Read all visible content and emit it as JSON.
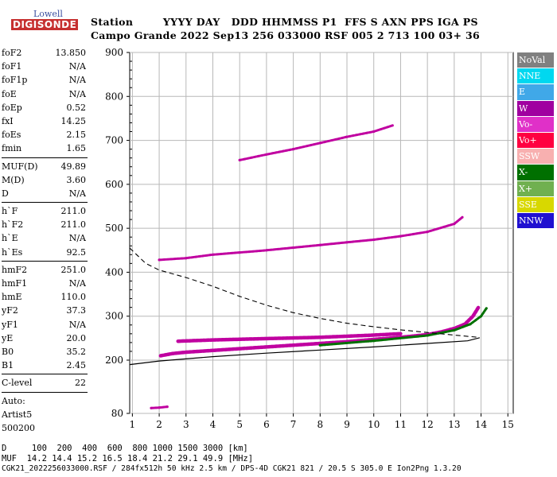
{
  "logo": {
    "line1": "Lowell",
    "line2": "DIGISONDE"
  },
  "header": {
    "line1": "Station        YYYY DAY   DDD HHMMSS P1  FFS S AXN PPS IGA PS",
    "line2": "Campo Grande 2022 Sep13 256 033000 RSF 005 2 713 100 03+ 36"
  },
  "params": {
    "group1": [
      {
        "name": "foF2",
        "value": "13.850"
      },
      {
        "name": "foF1",
        "value": "N/A"
      },
      {
        "name": "foF1p",
        "value": "N/A"
      },
      {
        "name": "foE",
        "value": "N/A"
      },
      {
        "name": "foEp",
        "value": "0.52"
      },
      {
        "name": "fxI",
        "value": "14.25"
      },
      {
        "name": "foEs",
        "value": "2.15"
      },
      {
        "name": "fmin",
        "value": "1.65"
      }
    ],
    "group2": [
      {
        "name": "MUF(D)",
        "value": "49.89"
      },
      {
        "name": "M(D)",
        "value": "3.60"
      },
      {
        "name": "D",
        "value": "N/A"
      }
    ],
    "group3": [
      {
        "name": "h`F",
        "value": "211.0"
      },
      {
        "name": "h`F2",
        "value": "211.0"
      },
      {
        "name": "h`E",
        "value": "N/A"
      },
      {
        "name": "h`Es",
        "value": "92.5"
      }
    ],
    "group4": [
      {
        "name": "hmF2",
        "value": "251.0"
      },
      {
        "name": "hmF1",
        "value": "N/A"
      },
      {
        "name": "hmE",
        "value": "110.0"
      },
      {
        "name": "yF2",
        "value": "37.3"
      },
      {
        "name": "yF1",
        "value": "N/A"
      },
      {
        "name": "yE",
        "value": "20.0"
      },
      {
        "name": "B0",
        "value": "35.2"
      },
      {
        "name": "B1",
        "value": "2.45"
      }
    ],
    "group5": [
      {
        "name": "C-level",
        "value": "22"
      }
    ],
    "notes": [
      "Auto:",
      "Artist5",
      "500200"
    ]
  },
  "legend": [
    {
      "label": "NoVal",
      "color": "#808080"
    },
    {
      "label": "NNE",
      "color": "#00d8f0"
    },
    {
      "label": "E",
      "color": "#40a8e8"
    },
    {
      "label": "W",
      "color": "#a000a0"
    },
    {
      "label": "Vo-",
      "color": "#e030c8"
    },
    {
      "label": "Vo+",
      "color": "#ff0040"
    },
    {
      "label": "SSW",
      "color": "#f8b0b0"
    },
    {
      "label": "X-",
      "color": "#007000"
    },
    {
      "label": "X+",
      "color": "#70b050"
    },
    {
      "label": "SSE",
      "color": "#d8d800"
    },
    {
      "label": "NNW",
      "color": "#2010d0"
    }
  ],
  "footer": {
    "line1": "D     100  200  400  600  800 1000 1500 3000 [km]",
    "line2": "MUF  14.2 14.4 15.2 16.5 18.4 21.2 29.1 49.9 [MHz]",
    "line3": "CGK21_2022256033000.RSF / 284fx512h 50 kHz 2.5 km / DPS-4D CGK21 821 / 20.5 S 305.0 E Ion2Png 1.3.20"
  },
  "chart_data": {
    "type": "scatter",
    "x_ticks": [
      1,
      2,
      3,
      4,
      5,
      6,
      7,
      8,
      9,
      10,
      11,
      12,
      13,
      14,
      15
    ],
    "y_ticks": [
      80,
      200,
      300,
      400,
      500,
      600,
      700,
      800,
      900
    ],
    "xlim": [
      0.9,
      15.2
    ],
    "ylim": [
      80,
      900
    ],
    "grid": true,
    "traces": [
      {
        "name": "F2 lower trace",
        "color": "#c000a0",
        "points": [
          [
            2.05,
            210
          ],
          [
            2.5,
            215
          ],
          [
            3,
            218
          ],
          [
            4,
            222
          ],
          [
            5,
            226
          ],
          [
            6,
            230
          ],
          [
            7,
            234
          ],
          [
            8,
            238
          ],
          [
            9,
            242
          ],
          [
            10,
            247
          ],
          [
            11,
            252
          ],
          [
            12,
            258
          ],
          [
            12.5,
            264
          ],
          [
            13,
            272
          ],
          [
            13.4,
            282
          ],
          [
            13.7,
            300
          ],
          [
            13.9,
            320
          ]
        ]
      },
      {
        "name": "F2 upper trace",
        "color": "#c000a0",
        "points": [
          [
            2.7,
            243
          ],
          [
            4,
            246
          ],
          [
            6,
            249
          ],
          [
            8,
            252
          ],
          [
            10,
            257
          ],
          [
            11,
            260
          ]
        ]
      },
      {
        "name": "multi-hop mid trace",
        "color": "#c000a0",
        "points": [
          [
            2.0,
            428
          ],
          [
            3,
            432
          ],
          [
            4,
            440
          ],
          [
            5,
            445
          ],
          [
            6,
            450
          ],
          [
            7,
            456
          ],
          [
            8,
            462
          ],
          [
            9,
            468
          ],
          [
            10,
            474
          ],
          [
            11,
            482
          ],
          [
            12,
            492
          ],
          [
            13,
            510
          ],
          [
            13.3,
            525
          ]
        ]
      },
      {
        "name": "multi-hop upper trace",
        "color": "#c000a0",
        "points": [
          [
            5,
            655
          ],
          [
            6,
            668
          ],
          [
            7,
            680
          ],
          [
            8,
            694
          ],
          [
            9,
            708
          ],
          [
            10,
            720
          ],
          [
            10.7,
            734
          ]
        ]
      },
      {
        "name": "F2 X trace",
        "color": "#007000",
        "points": [
          [
            8,
            234
          ],
          [
            10,
            244
          ],
          [
            12,
            256
          ],
          [
            13,
            268
          ],
          [
            13.6,
            282
          ],
          [
            14,
            300
          ],
          [
            14.2,
            318
          ]
        ]
      },
      {
        "name": "Es / low echo",
        "color": "#c000a0",
        "points": [
          [
            1.7,
            92
          ],
          [
            2.0,
            93
          ],
          [
            2.3,
            95
          ]
        ]
      }
    ],
    "profile_solid": [
      [
        0.9,
        190
      ],
      [
        2,
        198
      ],
      [
        4,
        208
      ],
      [
        6,
        216
      ],
      [
        8,
        223
      ],
      [
        10,
        230
      ],
      [
        12,
        238
      ],
      [
        13.5,
        244
      ],
      [
        13.95,
        251
      ]
    ],
    "profile_dashed": [
      [
        0.9,
        455
      ],
      [
        1.5,
        420
      ],
      [
        2,
        405
      ],
      [
        3,
        388
      ],
      [
        4,
        368
      ],
      [
        5,
        345
      ],
      [
        6,
        325
      ],
      [
        7,
        308
      ],
      [
        8,
        295
      ],
      [
        9,
        284
      ],
      [
        10,
        276
      ],
      [
        11,
        269
      ],
      [
        12,
        263
      ],
      [
        13,
        257
      ],
      [
        13.9,
        252
      ]
    ]
  }
}
